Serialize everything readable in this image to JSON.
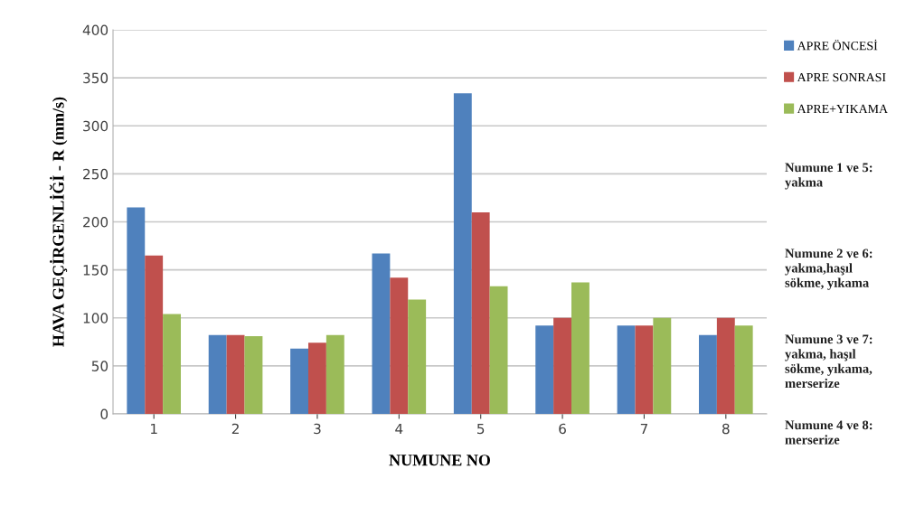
{
  "chart_data": {
    "type": "bar",
    "xlabel": "NUMUNE NO",
    "ylabel": "HAVA GEÇİRGENLİĞİ - R (mm/s)",
    "categories": [
      "1",
      "2",
      "3",
      "4",
      "5",
      "6",
      "7",
      "8"
    ],
    "series": [
      {
        "name": "APRE ÖNCESİ",
        "color": "#4f81bd",
        "values": [
          215,
          82,
          68,
          167,
          334,
          92,
          92,
          82
        ]
      },
      {
        "name": "APRE SONRASI",
        "color": "#c0504d",
        "values": [
          165,
          82,
          74,
          142,
          210,
          100,
          92,
          100
        ]
      },
      {
        "name": "APRE+YIKAMA",
        "color": "#9bbb59",
        "values": [
          104,
          81,
          82,
          119,
          133,
          137,
          100,
          92
        ]
      }
    ],
    "ylim": [
      0,
      400
    ],
    "yticks": [
      0,
      50,
      100,
      150,
      200,
      250,
      300,
      350,
      400
    ],
    "grid": "y",
    "legend": "right",
    "annotations": [
      "Numune 1 ve 5:\nyakma",
      "Numune 2 ve 6:\nyakma,haşıl\nsökme, yıkama",
      "Numune 3 ve 7:\nyakma, haşıl\nsökme, yıkama,\nmerserize",
      "Numune 4 ve 8:\nmerserize"
    ]
  }
}
